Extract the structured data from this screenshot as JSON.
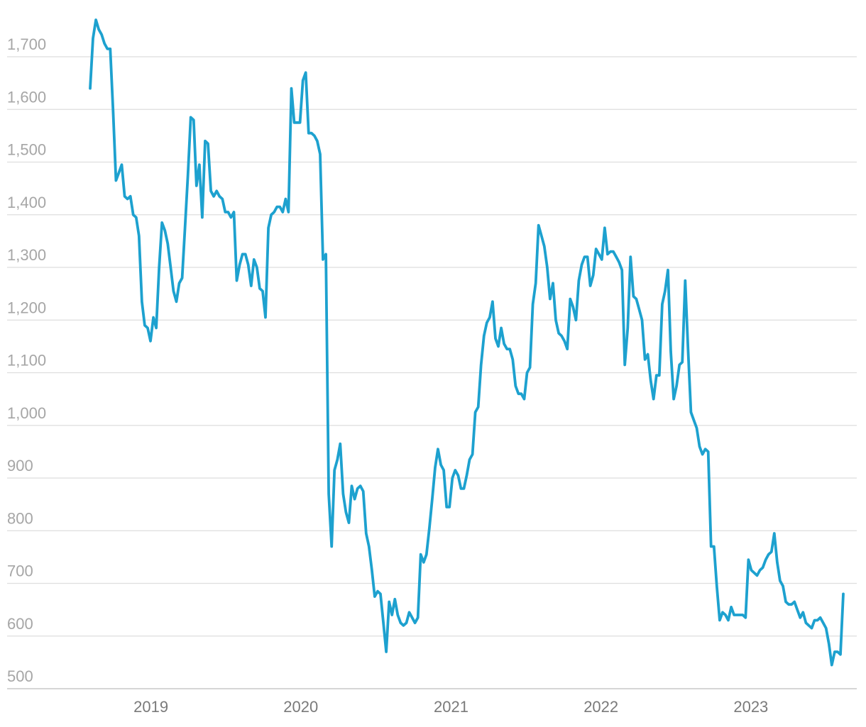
{
  "chart_data": {
    "type": "line",
    "title": "",
    "xlabel": "",
    "ylabel": "",
    "grid": true,
    "legend": "none",
    "ylim": [
      500,
      1700
    ],
    "xlim": [
      "2018-08-06",
      "2023-08-14"
    ],
    "yticks": [
      500,
      600,
      700,
      800,
      900,
      1000,
      1100,
      1200,
      1300,
      1400,
      1500,
      1600,
      1700
    ],
    "ytick_labels": [
      "500",
      "600",
      "700",
      "800",
      "900",
      "1,000",
      "1,100",
      "1,200",
      "1,300",
      "1,400",
      "1,500",
      "1,600",
      "1,700"
    ],
    "xticks": [
      "2019-01-01",
      "2020-01-01",
      "2021-01-01",
      "2022-01-01",
      "2023-01-01"
    ],
    "xtick_labels": [
      "2019",
      "2020",
      "2021",
      "2022",
      "2023"
    ],
    "line_color": "#1da1cf",
    "series": [
      {
        "name": "",
        "x": [
          "2018-08-06",
          "2018-08-13",
          "2018-08-20",
          "2018-08-27",
          "2018-09-03",
          "2018-09-10",
          "2018-09-17",
          "2018-09-24",
          "2018-10-01",
          "2018-10-08",
          "2018-10-15",
          "2018-10-22",
          "2018-10-29",
          "2018-11-05",
          "2018-11-12",
          "2018-11-19",
          "2018-11-26",
          "2018-12-03",
          "2018-12-10",
          "2018-12-17",
          "2018-12-24",
          "2018-12-31",
          "2019-01-07",
          "2019-01-14",
          "2019-01-21",
          "2019-01-28",
          "2019-02-04",
          "2019-02-11",
          "2019-02-18",
          "2019-02-25",
          "2019-03-04",
          "2019-03-11",
          "2019-03-18",
          "2019-03-25",
          "2019-04-01",
          "2019-04-08",
          "2019-04-15",
          "2019-04-22",
          "2019-04-29",
          "2019-05-06",
          "2019-05-13",
          "2019-05-20",
          "2019-05-27",
          "2019-06-03",
          "2019-06-10",
          "2019-06-17",
          "2019-06-24",
          "2019-07-01",
          "2019-07-08",
          "2019-07-15",
          "2019-07-22",
          "2019-07-29",
          "2019-08-05",
          "2019-08-12",
          "2019-08-19",
          "2019-08-26",
          "2019-09-02",
          "2019-09-09",
          "2019-09-16",
          "2019-09-23",
          "2019-09-30",
          "2019-10-07",
          "2019-10-14",
          "2019-10-21",
          "2019-10-28",
          "2019-11-04",
          "2019-11-11",
          "2019-11-18",
          "2019-11-25",
          "2019-12-02",
          "2019-12-09",
          "2019-12-16",
          "2019-12-23",
          "2019-12-30",
          "2020-01-06",
          "2020-01-13",
          "2020-01-20",
          "2020-01-27",
          "2020-02-03",
          "2020-02-10",
          "2020-02-17",
          "2020-02-24",
          "2020-03-02",
          "2020-03-09",
          "2020-03-16",
          "2020-03-23",
          "2020-03-30",
          "2020-04-06",
          "2020-04-13",
          "2020-04-20",
          "2020-04-27",
          "2020-05-04",
          "2020-05-11",
          "2020-05-18",
          "2020-05-25",
          "2020-06-01",
          "2020-06-08",
          "2020-06-15",
          "2020-06-22",
          "2020-06-29",
          "2020-07-06",
          "2020-07-13",
          "2020-07-20",
          "2020-07-27",
          "2020-08-03",
          "2020-08-10",
          "2020-08-17",
          "2020-08-24",
          "2020-08-31",
          "2020-09-07",
          "2020-09-14",
          "2020-09-21",
          "2020-09-28",
          "2020-10-05",
          "2020-10-12",
          "2020-10-19",
          "2020-10-26",
          "2020-11-02",
          "2020-11-09",
          "2020-11-16",
          "2020-11-23",
          "2020-11-30",
          "2020-12-07",
          "2020-12-14",
          "2020-12-21",
          "2020-12-28",
          "2021-01-04",
          "2021-01-11",
          "2021-01-18",
          "2021-01-25",
          "2021-02-01",
          "2021-02-08",
          "2021-02-15",
          "2021-02-22",
          "2021-03-01",
          "2021-03-08",
          "2021-03-15",
          "2021-03-22",
          "2021-03-29",
          "2021-04-05",
          "2021-04-12",
          "2021-04-19",
          "2021-04-26",
          "2021-05-03",
          "2021-05-10",
          "2021-05-17",
          "2021-05-24",
          "2021-05-31",
          "2021-06-07",
          "2021-06-14",
          "2021-06-21",
          "2021-06-28",
          "2021-07-05",
          "2021-07-12",
          "2021-07-19",
          "2021-07-26",
          "2021-08-02",
          "2021-08-09",
          "2021-08-16",
          "2021-08-23",
          "2021-08-30",
          "2021-09-06",
          "2021-09-13",
          "2021-09-20",
          "2021-09-27",
          "2021-10-04",
          "2021-10-11",
          "2021-10-18",
          "2021-10-25",
          "2021-11-01",
          "2021-11-08",
          "2021-11-15",
          "2021-11-22",
          "2021-11-29",
          "2021-12-06",
          "2021-12-13",
          "2021-12-20",
          "2021-12-27",
          "2022-01-03",
          "2022-01-10",
          "2022-01-17",
          "2022-01-24",
          "2022-01-31",
          "2022-02-07",
          "2022-02-14",
          "2022-02-21",
          "2022-02-28",
          "2022-03-07",
          "2022-03-14",
          "2022-03-21",
          "2022-03-28",
          "2022-04-04",
          "2022-04-11",
          "2022-04-18",
          "2022-04-25",
          "2022-05-02",
          "2022-05-09",
          "2022-05-16",
          "2022-05-23",
          "2022-05-30",
          "2022-06-06",
          "2022-06-13",
          "2022-06-20",
          "2022-06-27",
          "2022-07-04",
          "2022-07-11",
          "2022-07-18",
          "2022-07-25",
          "2022-08-01",
          "2022-08-08",
          "2022-08-15",
          "2022-08-22",
          "2022-08-29",
          "2022-09-05",
          "2022-09-12",
          "2022-09-19",
          "2022-09-26",
          "2022-10-03",
          "2022-10-10",
          "2022-10-17",
          "2022-10-24",
          "2022-10-31",
          "2022-11-07",
          "2022-11-14",
          "2022-11-21",
          "2022-11-28",
          "2022-12-05",
          "2022-12-12",
          "2022-12-19",
          "2022-12-26",
          "2023-01-02",
          "2023-01-09",
          "2023-01-16",
          "2023-01-23",
          "2023-01-30",
          "2023-02-06",
          "2023-02-13",
          "2023-02-20",
          "2023-02-27",
          "2023-03-06",
          "2023-03-13",
          "2023-03-20",
          "2023-03-27",
          "2023-04-03",
          "2023-04-10",
          "2023-04-17",
          "2023-04-24",
          "2023-05-01",
          "2023-05-08",
          "2023-05-15",
          "2023-05-22",
          "2023-05-29",
          "2023-06-05",
          "2023-06-12",
          "2023-06-19",
          "2023-06-26",
          "2023-07-03",
          "2023-07-10",
          "2023-07-17",
          "2023-07-24",
          "2023-07-31",
          "2023-08-07",
          "2023-08-14"
        ],
        "y": [
          1640,
          1735,
          1770,
          1752,
          1742,
          1725,
          1715,
          1715,
          1595,
          1465,
          1480,
          1495,
          1435,
          1430,
          1435,
          1400,
          1395,
          1360,
          1235,
          1190,
          1185,
          1160,
          1205,
          1185,
          1300,
          1385,
          1370,
          1345,
          1300,
          1255,
          1235,
          1270,
          1280,
          1375,
          1475,
          1585,
          1580,
          1455,
          1495,
          1395,
          1540,
          1535,
          1445,
          1435,
          1445,
          1435,
          1430,
          1405,
          1405,
          1395,
          1405,
          1275,
          1305,
          1325,
          1325,
          1305,
          1265,
          1315,
          1300,
          1260,
          1255,
          1205,
          1375,
          1400,
          1405,
          1415,
          1415,
          1405,
          1430,
          1405,
          1640,
          1575,
          1575,
          1575,
          1655,
          1670,
          1555,
          1555,
          1550,
          1540,
          1515,
          1315,
          1325,
          870,
          770,
          915,
          935,
          965,
          870,
          835,
          815,
          885,
          860,
          880,
          885,
          875,
          795,
          770,
          725,
          675,
          685,
          680,
          625,
          570,
          665,
          640,
          670,
          640,
          625,
          620,
          625,
          645,
          635,
          625,
          635,
          755,
          740,
          755,
          805,
          860,
          920,
          955,
          925,
          915,
          845,
          845,
          900,
          915,
          905,
          880,
          880,
          905,
          935,
          945,
          1025,
          1035,
          1115,
          1170,
          1195,
          1205,
          1235,
          1165,
          1150,
          1185,
          1155,
          1145,
          1145,
          1125,
          1075,
          1060,
          1060,
          1050,
          1100,
          1110,
          1230,
          1270,
          1380,
          1360,
          1340,
          1300,
          1240,
          1270,
          1200,
          1175,
          1170,
          1160,
          1145,
          1240,
          1225,
          1200,
          1275,
          1305,
          1320,
          1320,
          1265,
          1285,
          1335,
          1325,
          1315,
          1375,
          1325,
          1330,
          1330,
          1320,
          1310,
          1295,
          1115,
          1185,
          1320,
          1245,
          1240,
          1220,
          1200,
          1125,
          1135,
          1085,
          1050,
          1095,
          1095,
          1230,
          1255,
          1295,
          1140,
          1050,
          1075,
          1115,
          1120,
          1275,
          1145,
          1025,
          1010,
          995,
          960,
          945,
          955,
          950,
          770,
          770,
          695,
          630,
          645,
          640,
          630,
          655,
          640,
          640,
          640,
          640,
          635,
          745,
          725,
          720,
          715,
          725,
          730,
          745,
          755,
          760,
          795,
          740,
          705,
          695,
          665,
          660,
          660,
          665,
          650,
          635,
          645,
          625,
          620,
          615,
          630,
          630,
          635,
          625,
          615,
          585,
          545,
          570,
          570,
          565,
          680
        ]
      }
    ]
  }
}
